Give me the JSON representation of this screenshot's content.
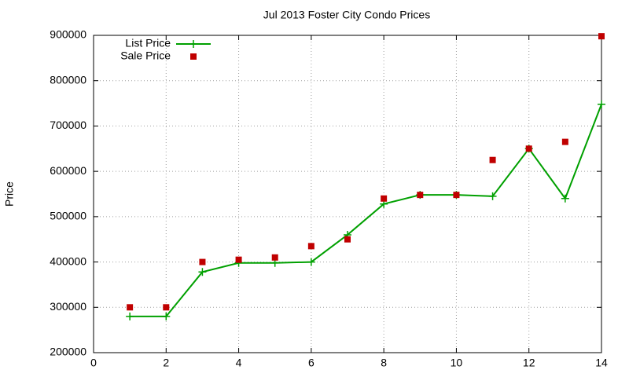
{
  "chart_data": {
    "type": "line",
    "title": "Jul 2013 Foster City Condo Prices",
    "y_label": "Price",
    "x": [
      1,
      2,
      3,
      4,
      5,
      6,
      7,
      8,
      9,
      10,
      11,
      12,
      13,
      14
    ],
    "series": [
      {
        "name": "List Price",
        "color": "#00a000",
        "style": "linespoints",
        "values": [
          280000,
          280000,
          378000,
          398000,
          398000,
          400000,
          460000,
          528000,
          548000,
          548000,
          545000,
          650000,
          540000,
          748000
        ]
      },
      {
        "name": "Sale Price",
        "color": "#c00000",
        "style": "points",
        "values": [
          300000,
          300000,
          400000,
          405000,
          410000,
          435000,
          450000,
          540000,
          548000,
          548000,
          625000,
          650000,
          665000,
          898000
        ]
      }
    ],
    "xlim": [
      0,
      14
    ],
    "xticks": [
      0,
      2,
      4,
      6,
      8,
      10,
      12,
      14
    ],
    "ylim": [
      200000,
      900000
    ],
    "yticks": [
      200000,
      300000,
      400000,
      500000,
      600000,
      700000,
      800000,
      900000
    ],
    "grid": true,
    "legend": "top-left"
  }
}
